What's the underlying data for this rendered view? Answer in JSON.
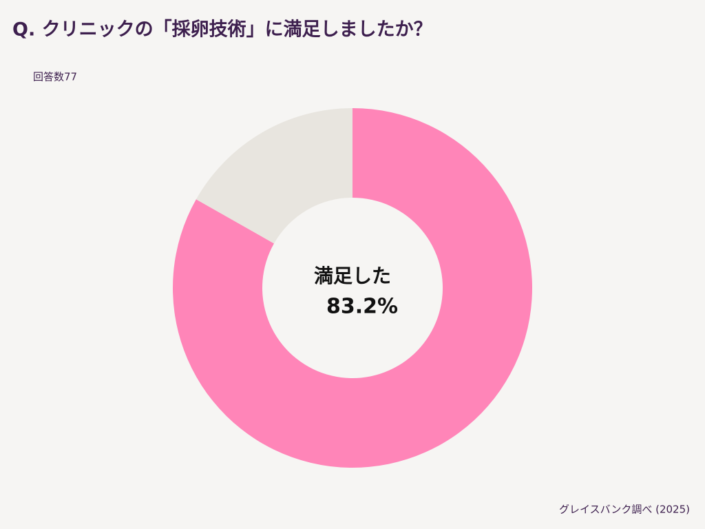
{
  "chart_data": {
    "type": "donut",
    "title": "Q. クリニックの「採卵技術」に満足しましたか？",
    "subtitle": "回答数77",
    "source": "グレイスバンク調べ (2025)",
    "categories": [
      "満足した",
      null
    ],
    "values": [
      83.2,
      16.8
    ],
    "value_labels": [
      "83.2%",
      null
    ],
    "colors": [
      "#ff85b8",
      "#e8e5df"
    ]
  }
}
